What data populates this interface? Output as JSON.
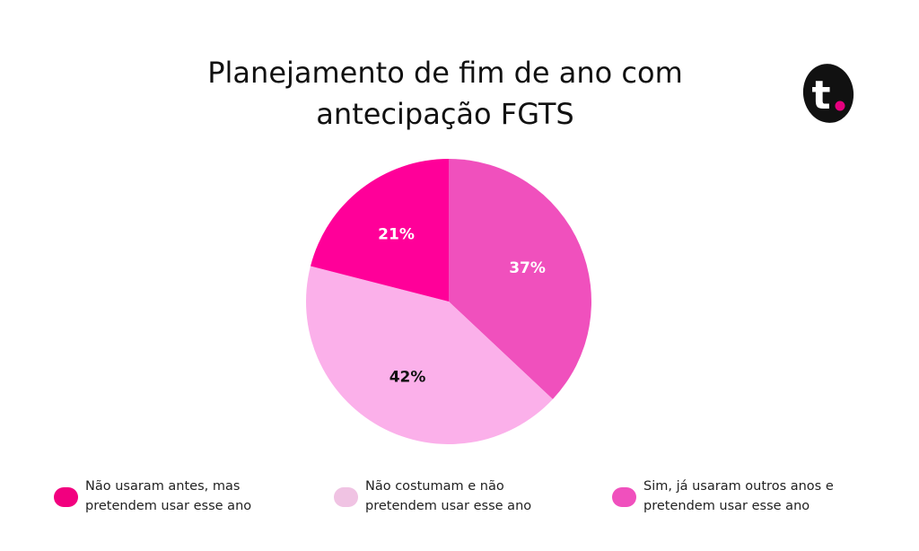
{
  "title": "Planejamento de fim de ano com\nantecipação FGTS",
  "logo": {
    "icon": "t-letter-logo-icon",
    "text": "t.",
    "dot_color": "#e6007e",
    "bg_color": "#111111"
  },
  "chart_data": {
    "type": "pie",
    "title": "Planejamento de fim de ano com antecipação FGTS",
    "start": "12 o'clock",
    "direction": "clockwise",
    "slices": [
      {
        "label": "Sim, já usaram outros anos e\npretendem usar esse ano",
        "value": 37,
        "display": "37%",
        "color": "#f050bd",
        "label_color": "#ffffff"
      },
      {
        "label": "Não costumam e não\npretendem usar esse ano",
        "value": 42,
        "display": "42%",
        "color": "#fbb0ea",
        "label_color": "#111111"
      },
      {
        "label": "Não usaram antes, mas\npretendem usar esse ano",
        "value": 21,
        "display": "21%",
        "color": "#ff0099",
        "label_color": "#ffffff"
      }
    ],
    "legend_placement": "bottom"
  },
  "legend": [
    {
      "text": "Não usaram antes, mas\npretendem usar esse ano",
      "color": "#f2007f"
    },
    {
      "text": "Não costumam e não\npretendem usar esse ano",
      "color": "#f0c3e3"
    },
    {
      "text": "Sim, já usaram outros anos e\npretendem usar esse ano",
      "color": "#f050bd"
    }
  ]
}
